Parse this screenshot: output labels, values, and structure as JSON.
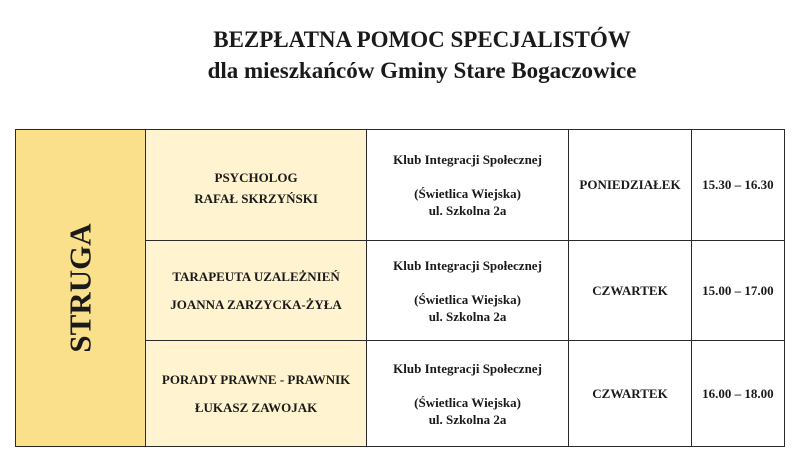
{
  "title": {
    "line1": "BEZPŁATNA POMOC SPECJALISTÓW",
    "line2": "dla mieszkańców Gminy Stare Bogaczowice"
  },
  "location_area": "STRUGA",
  "rows": [
    {
      "specialty": "PSYCHOLOG",
      "person": "RAFAŁ SKRZYŃSKI",
      "place_name": "Klub Integracji Społecznej",
      "place_detail": "(Świetlica Wiejska)",
      "address": "ul. Szkolna 2a",
      "day": "PONIEDZIAŁEK",
      "hours": "15.30 – 16.30"
    },
    {
      "specialty": "TARAPEUTA UZALEŻNIEŃ",
      "person": "JOANNA ZARZYCKA-ŻYŁA",
      "place_name": "Klub Integracji Społecznej",
      "place_detail": "(Świetlica Wiejska)",
      "address": "ul. Szkolna 2a",
      "day": "CZWARTEK",
      "hours": "15.00 – 17.00"
    },
    {
      "specialty": "PORADY PRAWNE - PRAWNIK",
      "person": "ŁUKASZ ZAWOJAK",
      "place_name": "Klub Integracji Społecznej",
      "place_detail": "(Świetlica Wiejska)",
      "address": "ul. Szkolna 2a",
      "day": "CZWARTEK",
      "hours": "16.00 – 18.00"
    }
  ],
  "colors": {
    "area_bg": "#fbe08c",
    "specialist_bg": "#fff4cf"
  }
}
